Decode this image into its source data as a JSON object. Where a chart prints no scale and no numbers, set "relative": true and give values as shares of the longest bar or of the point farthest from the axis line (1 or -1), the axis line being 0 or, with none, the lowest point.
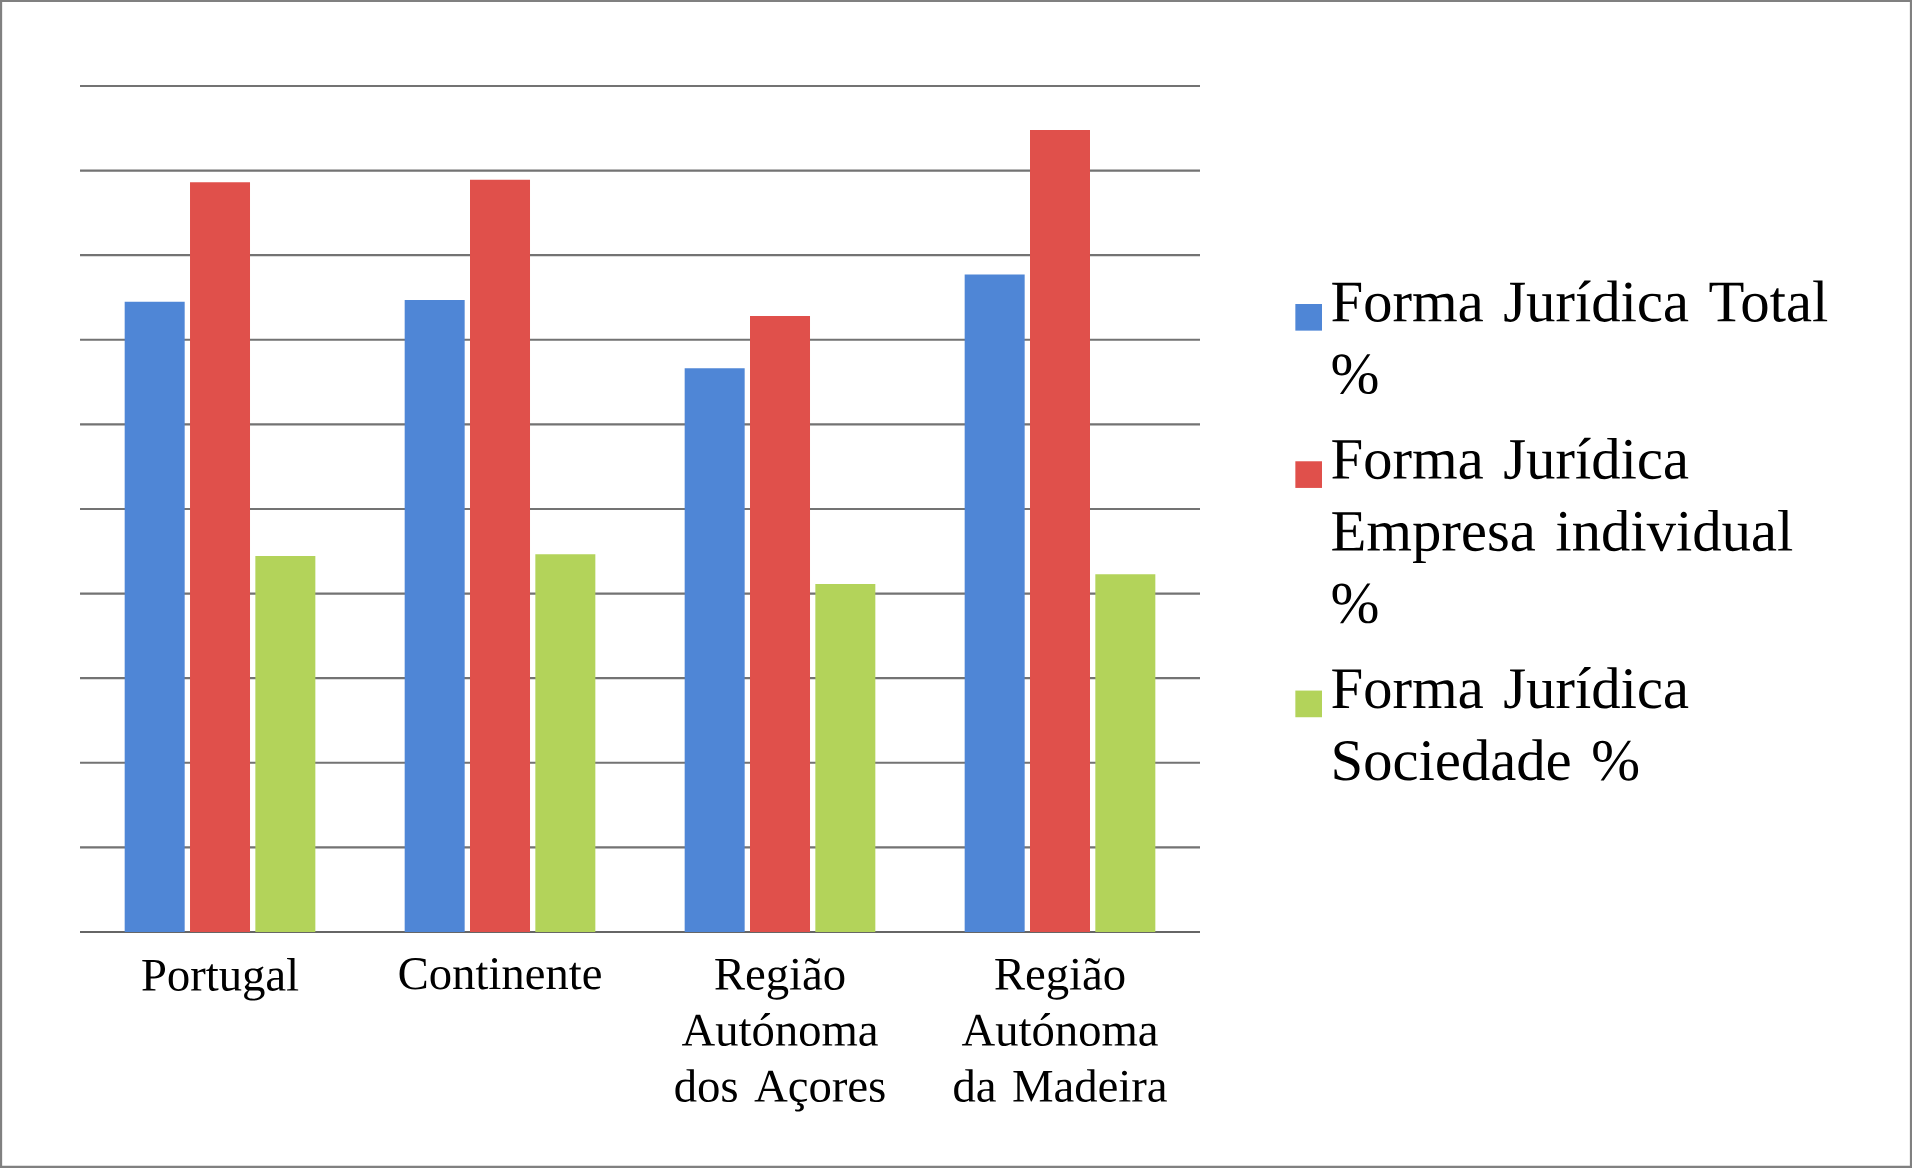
{
  "chart_data": {
    "type": "bar",
    "relative": true,
    "grid": "y",
    "legend": "right",
    "categories": [
      "Portugal",
      "Continente",
      "Região Autónoma dos Açores",
      "Região Autónoma da Madeira"
    ],
    "series": [
      {
        "name": "Forma Jurídica  Total %",
        "color": "#4f86d6",
        "values": [
          0.786,
          0.788,
          0.703,
          0.82
        ]
      },
      {
        "name": "Forma Jurídica Empresa individual %",
        "color": "#e0504b",
        "values": [
          0.935,
          0.938,
          0.768,
          1
        ]
      },
      {
        "name": "Forma Jurídica Sociedade %",
        "color": "#b3d35a",
        "values": [
          0.469,
          0.471,
          0.434,
          0.446
        ]
      }
    ]
  }
}
